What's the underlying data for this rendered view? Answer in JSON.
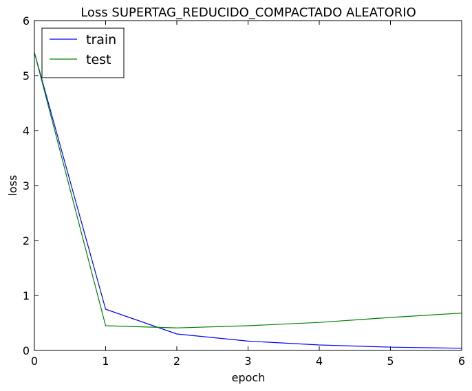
{
  "chart_data": {
    "type": "line",
    "title": "Loss SUPERTAG_REDUCIDO_COMPACTADO ALEATORIO",
    "xlabel": "epoch",
    "ylabel": "loss",
    "xlim": [
      0,
      6
    ],
    "ylim": [
      0,
      6
    ],
    "xticks": [
      0,
      1,
      2,
      3,
      4,
      5,
      6
    ],
    "yticks": [
      0,
      1,
      2,
      3,
      4,
      5,
      6
    ],
    "grid": false,
    "legend_position": "top-left",
    "x": [
      0,
      1,
      2,
      3,
      4,
      5,
      6
    ],
    "series": [
      {
        "name": "train",
        "color": "#0000ff",
        "values": [
          5.42,
          0.75,
          0.3,
          0.17,
          0.1,
          0.06,
          0.04
        ]
      },
      {
        "name": "test",
        "color": "#008000",
        "values": [
          5.42,
          0.45,
          0.41,
          0.45,
          0.51,
          0.6,
          0.68
        ]
      }
    ]
  }
}
